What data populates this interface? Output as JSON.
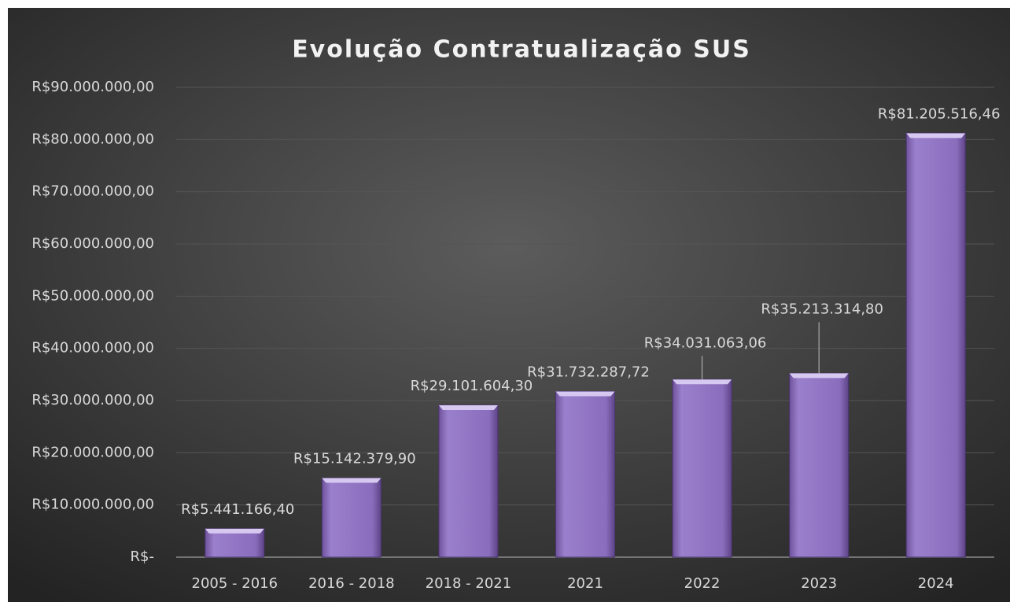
{
  "chart_data": {
    "type": "bar",
    "title": "Evolução Contratualização SUS",
    "categories": [
      "2005 - 2016",
      "2016 - 2018",
      "2018 - 2021",
      "2021",
      "2022",
      "2023",
      "2024"
    ],
    "values": [
      5441166.4,
      15142379.9,
      29101604.3,
      31732287.72,
      34031063.06,
      35213314.8,
      81205516.46
    ],
    "value_labels": [
      "R$5.441.166,40",
      "R$15.142.379,90",
      "R$29.101.604,30",
      "R$31.732.287,72",
      "R$34.031.063,06",
      "R$35.213.314,80",
      "R$81.205.516,46"
    ],
    "color": "#8e72c0",
    "ylim": [
      0,
      90000000
    ],
    "yticks": [
      {
        "value": 0,
        "label": "R$-"
      },
      {
        "value": 10000000,
        "label": "R$10.000.000,00"
      },
      {
        "value": 20000000,
        "label": "R$20.000.000,00"
      },
      {
        "value": 30000000,
        "label": "R$30.000.000,00"
      },
      {
        "value": 40000000,
        "label": "R$40.000.000,00"
      },
      {
        "value": 50000000,
        "label": "R$50.000.000,00"
      },
      {
        "value": 60000000,
        "label": "R$60.000.000,00"
      },
      {
        "value": 70000000,
        "label": "R$70.000.000,00"
      },
      {
        "value": 80000000,
        "label": "R$80.000.000,00"
      },
      {
        "value": 90000000,
        "label": "R$90.000.000,00"
      }
    ],
    "grid": true
  }
}
